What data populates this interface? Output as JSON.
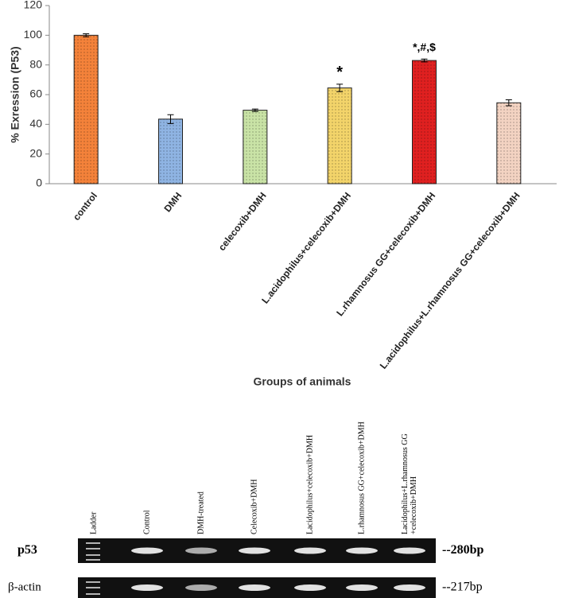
{
  "chart_data": {
    "type": "bar",
    "ylabel": "% Exression (P53)",
    "xlabel": "Groups of animals",
    "categories": [
      "control",
      "DMH",
      "celecoxib+DMH",
      "L.acidophilus+celecoxib+DMH",
      "L.rhamnosus GG+celecoxib+DMH",
      "L.acidophilus+L.rhamnosus GG+celecoxib+DMH"
    ],
    "values": [
      100,
      43.5,
      49.5,
      64.5,
      83,
      54.5
    ],
    "errors": [
      1,
      3,
      0.8,
      2.5,
      1,
      2
    ],
    "colors": [
      "#f4823a",
      "#8fb4e3",
      "#c9e3a6",
      "#f3d46a",
      "#e02020",
      "#f3d3c2"
    ],
    "bar_annotations": [
      null,
      null,
      null,
      "*",
      "*,#,$",
      null
    ],
    "ylim": [
      0,
      120
    ],
    "yticks": [
      0,
      20,
      40,
      60,
      80,
      100,
      120
    ]
  },
  "gel": {
    "lanes": [
      [
        "Ladder"
      ],
      [
        "Control"
      ],
      [
        "DMH-treated"
      ],
      [
        "Celecoxib+DMH"
      ],
      [
        "Lacidophilus+celecoxib+DMH"
      ],
      [
        "L.rhamnosus GG+celecoxib+DMH"
      ],
      [
        "Lacidophilus+L.rhamnosus GG",
        "+celecoxib+DMH"
      ]
    ],
    "rows": [
      {
        "label": "p53",
        "size": "--280bp"
      },
      {
        "label": "β-actin",
        "size": "--217bp"
      }
    ]
  }
}
